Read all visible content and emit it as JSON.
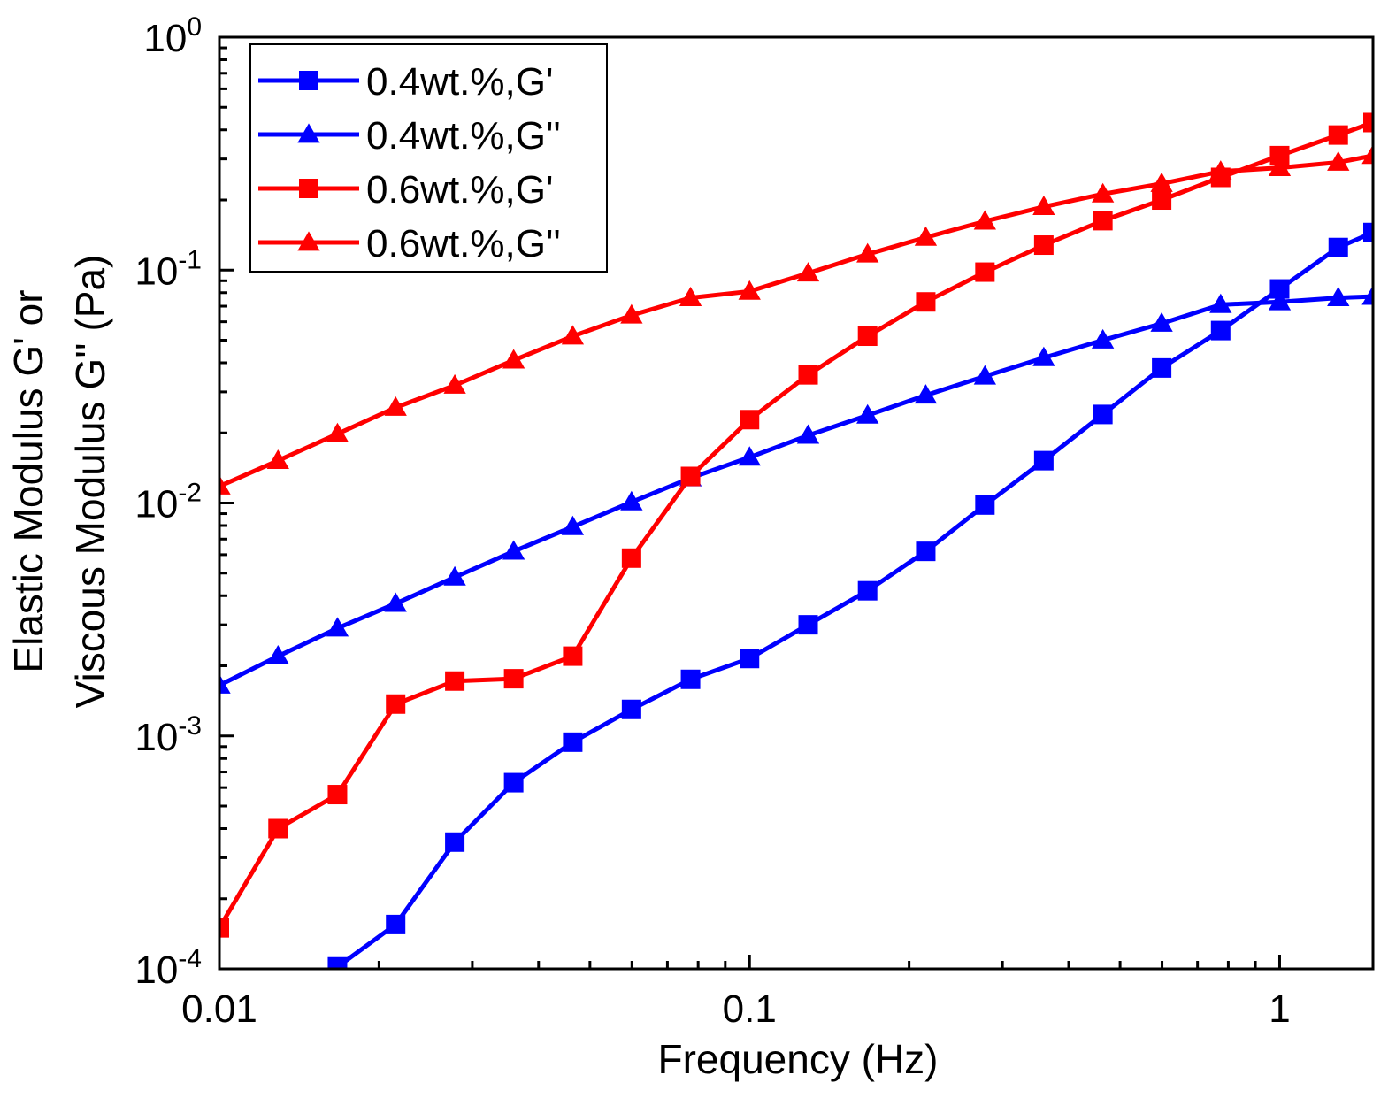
{
  "chart_data": {
    "type": "line",
    "title": "",
    "xlabel": "Frequency  (Hz)",
    "ylabel": "Elastic Modulus G' or Viscous Modulus G'' (Pa)",
    "ylabel_lines": [
      "Elastic Modulus G' or",
      "Viscous Modulus G'' (Pa)"
    ],
    "xscale": "log",
    "yscale": "log",
    "xlim": [
      0.01,
      1.5
    ],
    "ylim": [
      0.0001,
      1
    ],
    "x_ticks": [
      {
        "value": 0.01,
        "label": "0.01"
      },
      {
        "value": 0.1,
        "label": "0.1"
      },
      {
        "value": 1,
        "label": "1"
      }
    ],
    "y_ticks": [
      {
        "value": 0.0001,
        "base": "10",
        "exp": "-4"
      },
      {
        "value": 0.001,
        "base": "10",
        "exp": "-3"
      },
      {
        "value": 0.01,
        "base": "10",
        "exp": "-2"
      },
      {
        "value": 0.1,
        "base": "10",
        "exp": "-1"
      },
      {
        "value": 1,
        "base": "10",
        "exp": "0"
      }
    ],
    "grid": false,
    "legend_position": "top-left",
    "series": [
      {
        "name": "0.4wt.%,G'",
        "color": "#0000ff",
        "marker": "square",
        "x": [
          0.0167,
          0.0215,
          0.0278,
          0.0359,
          0.0464,
          0.0599,
          0.0774,
          0.1,
          0.129,
          0.167,
          0.215,
          0.278,
          0.359,
          0.464,
          0.599,
          0.774,
          1.0,
          1.29,
          1.5
        ],
        "y": [
          0.000102,
          0.000155,
          0.00035,
          0.00063,
          0.00094,
          0.0013,
          0.00175,
          0.00215,
          0.003,
          0.0042,
          0.0062,
          0.0098,
          0.0152,
          0.024,
          0.038,
          0.055,
          0.083,
          0.125,
          0.145
        ]
      },
      {
        "name": "0.4wt.%,G''",
        "color": "#0000ff",
        "marker": "triangle",
        "x": [
          0.01,
          0.0129,
          0.0167,
          0.0215,
          0.0278,
          0.0359,
          0.0464,
          0.0599,
          0.0774,
          0.1,
          0.129,
          0.167,
          0.215,
          0.278,
          0.359,
          0.464,
          0.599,
          0.774,
          1.0,
          1.29,
          1.5
        ],
        "y": [
          0.00165,
          0.0022,
          0.0029,
          0.0037,
          0.0048,
          0.0062,
          0.0079,
          0.0101,
          0.0128,
          0.0157,
          0.0195,
          0.0238,
          0.029,
          0.035,
          0.042,
          0.05,
          0.059,
          0.071,
          0.073,
          0.076,
          0.077
        ]
      },
      {
        "name": "0.6wt.%,G'",
        "color": "#ff0000",
        "marker": "square",
        "x": [
          0.01,
          0.0129,
          0.0167,
          0.0215,
          0.0278,
          0.0359,
          0.0464,
          0.0599,
          0.0774,
          0.1,
          0.129,
          0.167,
          0.215,
          0.278,
          0.359,
          0.464,
          0.599,
          0.774,
          1.0,
          1.29,
          1.5
        ],
        "y": [
          0.00015,
          0.0004,
          0.00056,
          0.00137,
          0.00172,
          0.00176,
          0.0022,
          0.0058,
          0.013,
          0.0228,
          0.0355,
          0.052,
          0.073,
          0.098,
          0.128,
          0.163,
          0.2,
          0.25,
          0.31,
          0.38,
          0.43
        ]
      },
      {
        "name": "0.6wt.%,G''",
        "color": "#ff0000",
        "marker": "triangle",
        "x": [
          0.01,
          0.0129,
          0.0167,
          0.0215,
          0.0278,
          0.0359,
          0.0464,
          0.0599,
          0.0774,
          0.1,
          0.129,
          0.167,
          0.215,
          0.278,
          0.359,
          0.464,
          0.599,
          0.774,
          1.0,
          1.29,
          1.5
        ],
        "y": [
          0.0118,
          0.0152,
          0.0198,
          0.0257,
          0.032,
          0.041,
          0.052,
          0.064,
          0.076,
          0.081,
          0.097,
          0.117,
          0.138,
          0.162,
          0.187,
          0.212,
          0.235,
          0.265,
          0.275,
          0.29,
          0.31
        ]
      }
    ]
  }
}
